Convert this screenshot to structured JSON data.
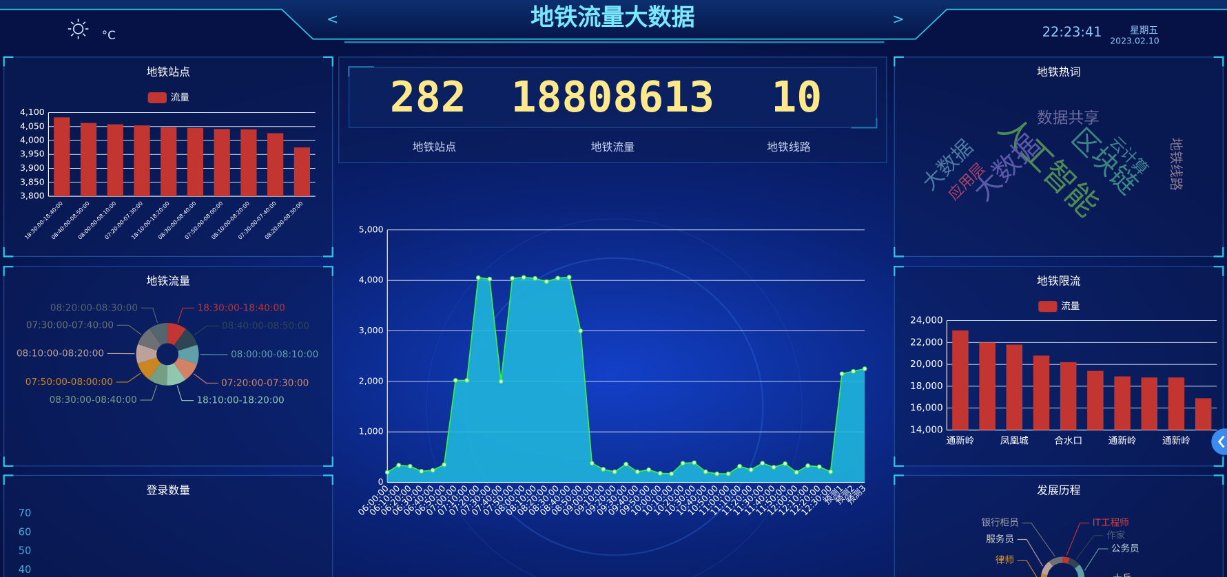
{
  "header": {
    "title": "地铁流量大数据",
    "temperature_unit": "°C",
    "prev": "<",
    "next": ">",
    "time": "22:23:41",
    "weekday": "星期五",
    "date": "2023.02.10"
  },
  "stats": [
    {
      "value": 282,
      "label": "地铁站点"
    },
    {
      "value": 18808613,
      "label": "地铁流量"
    },
    {
      "value": 10,
      "label": "地铁线路"
    }
  ],
  "hot_words": {
    "title": "地铁热词",
    "words": [
      "数据共享",
      "人工智能",
      "区块链",
      "大数据",
      "大数据",
      "应用层",
      "云计算",
      "地铁线路"
    ]
  },
  "chart_data": [
    {
      "type": "bar",
      "title": "地铁站点",
      "categories": [
        "18:30:00-18:40:00",
        "08:40:00-08:50:00",
        "08:00:00-08:10:00",
        "07:20:00-07:30:00",
        "18:10:00-18:20:00",
        "08:30:00-08:40:00",
        "07:50:00-08:00:00",
        "08:10:00-08:20:00",
        "07:30:00-07:40:00",
        "08:20:00-08:30:00"
      ],
      "series": [
        {
          "name": "流量",
          "color": "#c23531",
          "values": [
            4083,
            4063,
            4058,
            4054,
            4047,
            4045,
            4041,
            4040,
            4026,
            3975
          ]
        }
      ],
      "ylim": [
        3800,
        4100
      ],
      "yticks": [
        {
          "value": 3800,
          "label": "3,800"
        },
        {
          "value": 3850,
          "label": "3,850"
        },
        {
          "value": 3900,
          "label": "3,900"
        },
        {
          "value": 3950,
          "label": "3,950"
        },
        {
          "value": 4000,
          "label": "4,000"
        },
        {
          "value": 4050,
          "label": "4,050"
        },
        {
          "value": 4100,
          "label": "4,100"
        }
      ],
      "grid": true
    },
    {
      "type": "pie",
      "title": "地铁流量",
      "categories": [
        "18:30:00-18:40:00",
        "08:40:00-08:50:00",
        "08:00:00-08:10:00",
        "07:20:00-07:30:00",
        "18:10:00-18:20:00",
        "08:30:00-08:40:00",
        "07:50:00-08:00:00",
        "08:10:00-08:20:00",
        "07:30:00-07:40:00",
        "08:20:00-08:30:00"
      ],
      "values": [
        4083,
        4063,
        4058,
        4054,
        4047,
        4045,
        4041,
        4040,
        4026,
        3975
      ],
      "colors": [
        "#c23531",
        "#2f4554",
        "#61a0a8",
        "#d48265",
        "#91c7ae",
        "#749f83",
        "#ca8622",
        "#bda29a",
        "#6e7074",
        "#546570"
      ]
    },
    {
      "type": "line",
      "title": "登录数量",
      "ylim": [
        0,
        70
      ],
      "yticks": [
        40,
        50,
        60,
        70
      ],
      "grid": false
    },
    {
      "type": "area",
      "categories": [
        "06:00:00",
        "06:10:00",
        "06:20:00",
        "06:30:00",
        "06:40:00",
        "06:50:00",
        "07:00:00",
        "07:10:00",
        "07:20:00",
        "07:30:00",
        "07:40:00",
        "07:50:00",
        "08:00:00",
        "08:10:00",
        "08:20:00",
        "08:30:00",
        "08:40:00",
        "08:50:00",
        "09:00:00",
        "09:10:00",
        "09:20:00",
        "09:30:00",
        "09:40:00",
        "09:50:00",
        "10:00:00",
        "10:10:00",
        "10:20:00",
        "10:30:00",
        "10:40:00",
        "10:50:00",
        "11:00:00",
        "11:10:00",
        "11:20:00",
        "11:30:00",
        "11:40:00",
        "11:50:00",
        "12:00:00",
        "12:10:00",
        "12:20:00",
        "12:30:00",
        "预测1",
        "预测2",
        "预测3"
      ],
      "values": [
        200,
        340,
        320,
        220,
        240,
        350,
        2020,
        2020,
        4054,
        4026,
        2000,
        4041,
        4058,
        4040,
        3975,
        4045,
        4063,
        3000,
        380,
        260,
        210,
        360,
        210,
        250,
        180,
        170,
        380,
        390,
        210,
        170,
        170,
        320,
        250,
        380,
        300,
        370,
        200,
        330,
        310,
        210,
        2150,
        2200,
        2250
      ],
      "color": "#3ef03e",
      "fill_color": "#1fb5dc",
      "ylim": [
        0,
        5000
      ],
      "yticks": [
        0,
        {
          "value": 1000,
          "label": "1,000"
        },
        {
          "value": 2000,
          "label": "2,000"
        },
        {
          "value": 3000,
          "label": "3,000"
        },
        {
          "value": 4000,
          "label": "4,000"
        },
        {
          "value": 5000,
          "label": "5,000"
        }
      ],
      "grid": true
    },
    {
      "type": "bar",
      "title": "地铁限流",
      "categories": [
        "通新岭",
        null,
        "凤凰城",
        null,
        "合水口",
        null,
        "通新岭",
        null,
        "通新岭",
        null
      ],
      "series": [
        {
          "name": "流量",
          "color": "#c23531",
          "values": [
            23100,
            22000,
            21800,
            20800,
            20200,
            19400,
            18900,
            18800,
            18800,
            16900
          ]
        }
      ],
      "ylim": [
        14000,
        24000
      ],
      "yticks": [
        {
          "value": 14000,
          "label": "14,000"
        },
        {
          "value": 16000,
          "label": "16,000"
        },
        {
          "value": 18000,
          "label": "18,000"
        },
        {
          "value": 20000,
          "label": "20,000"
        },
        {
          "value": 22000,
          "label": "22,000"
        },
        {
          "value": 24000,
          "label": "24,000"
        }
      ],
      "grid": true
    },
    {
      "type": "pie",
      "title": "发展历程",
      "categories": [
        "IT工程师",
        "作家",
        "公务员",
        "士兵",
        "律师",
        "服务员",
        "银行柜员"
      ],
      "values": [
        5,
        8,
        10,
        40,
        10,
        10,
        10
      ],
      "colors": [
        "#c23531",
        "#2f4554",
        "#61a0a8",
        "#d48265",
        "#ca8622",
        "#bda29a",
        "#6e7074"
      ]
    }
  ]
}
